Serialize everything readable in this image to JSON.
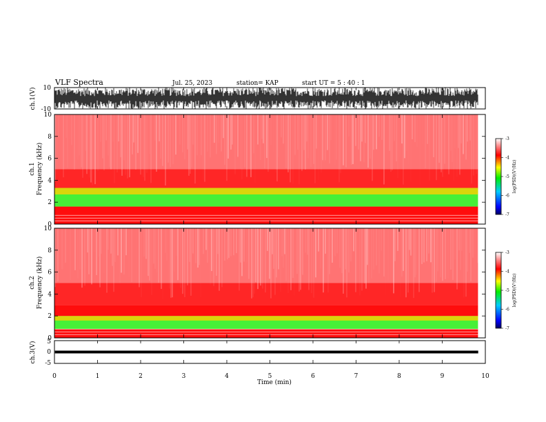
{
  "header": {
    "title": "VLF Spectra",
    "date": "Jul. 25, 2023",
    "station": "station= KAP",
    "start_ut": "start  UT =  5 : 40 : 1"
  },
  "colors": {
    "background_fill": "#ff0000",
    "speckle": "#ffffff",
    "low_band": "#ffd000",
    "green_band": "#33ee22",
    "axis": "#000000"
  },
  "chart_data": [
    {
      "name_key": "ch1_waveform",
      "type": "line",
      "ylabel": "ch.1(V)",
      "ylim": [
        -10,
        10
      ],
      "y_ticks": [
        "10",
        "-10"
      ],
      "x_range_min": [
        0,
        9.83
      ],
      "note_level": "noisy signal spanning nearly full range"
    },
    {
      "name_key": "ch1_spectrogram",
      "type": "heatmap",
      "ylabel_top": "ch.1",
      "ylabel": "Frequency (kHz)",
      "ylim": [
        0,
        10
      ],
      "y_ticks": [
        "0",
        "2",
        "4",
        "6",
        "8",
        "10"
      ],
      "bands": [
        {
          "from_khz": 0.0,
          "to_khz": 1.6,
          "level": "mid"
        },
        {
          "from_khz": 1.6,
          "to_khz": 3.3,
          "level": "high"
        },
        {
          "from_khz": 3.3,
          "to_khz": 5.0,
          "level": "dense-low"
        },
        {
          "from_khz": 5.0,
          "to_khz": 10.0,
          "level": "sparse"
        }
      ],
      "colorbar": {
        "label": "log(PSD)(V²/Hz)",
        "ticks": [
          "-3",
          "-4",
          "-5",
          "-6",
          "-7"
        ],
        "range": [
          -7,
          -3
        ]
      }
    },
    {
      "name_key": "ch2_spectrogram",
      "type": "heatmap",
      "ylabel_top": "ch.2",
      "ylabel": "Frequency (kHz)",
      "ylim": [
        0,
        10
      ],
      "y_ticks": [
        "0",
        "2",
        "4",
        "6",
        "8",
        "10"
      ],
      "bands": [
        {
          "from_khz": 0.0,
          "to_khz": 0.8,
          "level": "mid"
        },
        {
          "from_khz": 0.8,
          "to_khz": 2.0,
          "level": "high"
        },
        {
          "from_khz": 2.0,
          "to_khz": 3.0,
          "level": "mid"
        },
        {
          "from_khz": 3.0,
          "to_khz": 5.0,
          "level": "dense-low"
        },
        {
          "from_khz": 5.0,
          "to_khz": 10.0,
          "level": "sparse"
        }
      ],
      "colorbar": {
        "label": "log(PSD)(V²/Hz)",
        "ticks": [
          "-3",
          "-4",
          "-5",
          "-6",
          "-7"
        ],
        "range": [
          -7,
          -3
        ]
      }
    },
    {
      "name_key": "ch3_waveform",
      "type": "line",
      "ylabel": "ch.3(V)",
      "ylim": [
        -5,
        5
      ],
      "y_ticks": [
        "5",
        "0",
        "-5"
      ],
      "note_level": "thick band near 0 V"
    }
  ],
  "x_axis": {
    "label": "Time (min)",
    "ticks": [
      "0",
      "1",
      "2",
      "3",
      "4",
      "5",
      "6",
      "7",
      "8",
      "9",
      "10"
    ],
    "range": [
      0,
      10
    ],
    "data_end": 9.83
  }
}
